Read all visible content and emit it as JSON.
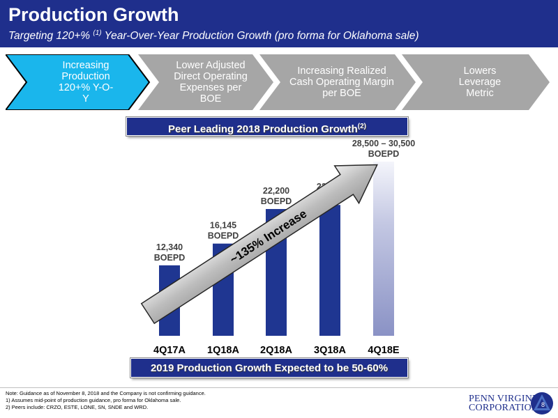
{
  "header": {
    "title": "Production Growth",
    "subtitle_pre": "Targeting 120+% ",
    "subtitle_sup": "(1)",
    "subtitle_post": " Year-Over-Year Production Growth (pro forma for Oklahoma sale)"
  },
  "steps": [
    {
      "label": "Increasing Production 120+% Y-O-Y",
      "active": true
    },
    {
      "label": "Lower Adjusted Direct Operating Expenses per BOE",
      "active": false
    },
    {
      "label": "Increasing Realized Cash Operating Margin per BOE",
      "active": false
    },
    {
      "label": "Lowers Leverage Metric",
      "active": false
    }
  ],
  "banner_top": {
    "text": "Peer Leading 2018 Production Growth",
    "sup": "(2)"
  },
  "banner_bottom": {
    "text": "2019 Production Growth Expected to be 50-60%"
  },
  "chart_data": {
    "type": "bar",
    "categories": [
      "4Q17A",
      "1Q18A",
      "2Q18A",
      "3Q18A",
      "4Q18E"
    ],
    "values": [
      12340,
      16145,
      22200,
      22912,
      29500
    ],
    "value_labels": [
      "12,340",
      "16,145",
      "22,200",
      "22,912",
      "28,500 – 30,500"
    ],
    "unit": "BOEPD",
    "estimate_range": [
      28500,
      30500
    ],
    "arrow_label": "~135% Increase",
    "colors": {
      "actual": "#1f3691",
      "estimate": "#a3a9d0"
    },
    "ylim": [
      0,
      30500
    ]
  },
  "footer": {
    "notes": [
      "Note: Guidance as of November 8, 2018 and the Company is not confirming guidance.",
      "1) Assumes mid-point of production guidance, pro forma for Oklahoma sale.",
      "2) Peers include: CRZO, ESTE, LONE, SN, SNDE and WRD."
    ],
    "logo_line1": "PENN VIRGINIA",
    "logo_line2": "CORPORATION",
    "page_number": "8"
  },
  "colors": {
    "brand_navy": "#1f2f8c",
    "step_active": "#1ab6ec",
    "step_inactive": "#a6a6a6"
  }
}
